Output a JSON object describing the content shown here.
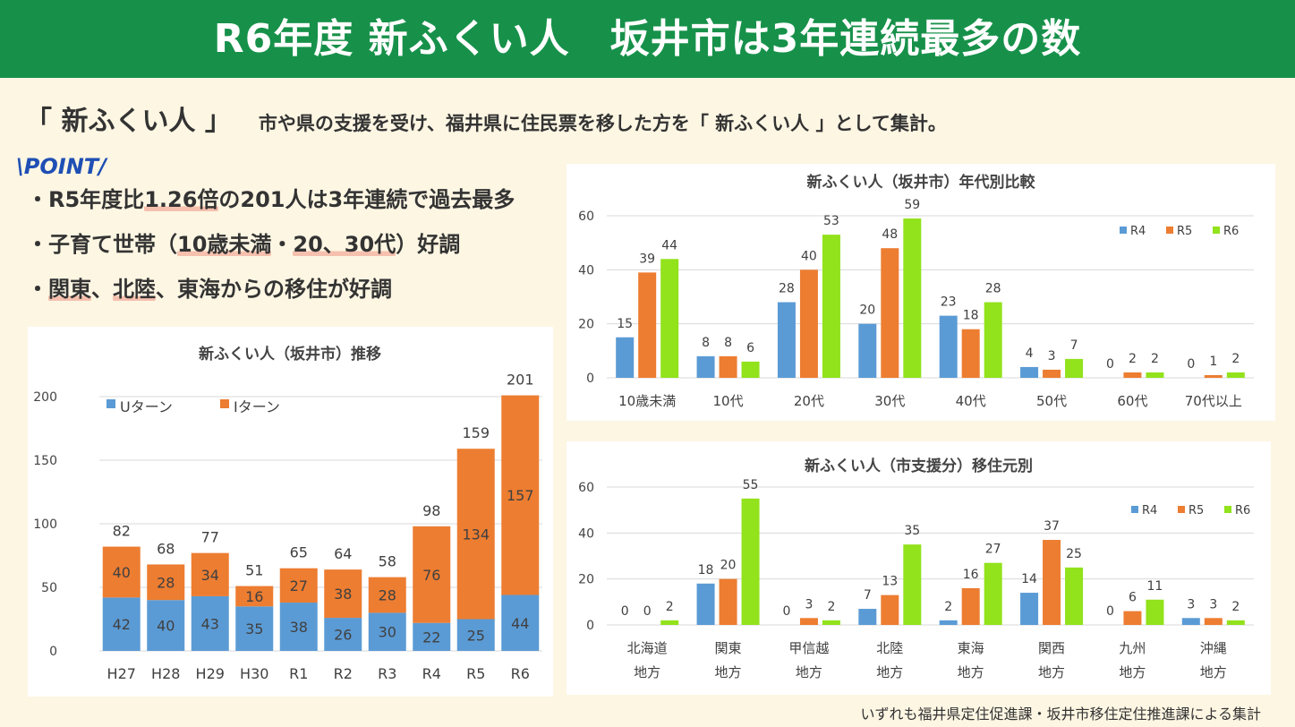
{
  "banner": {
    "title": "R6年度 新ふくい人　坂井市は3年連続最多の数"
  },
  "definition": {
    "term": "「 新ふくい人 」",
    "text": "市や県の支援を受け、福井県に住民票を移した方を「 新ふくい人 」として集計。"
  },
  "point": {
    "heading": "\\POINT/",
    "bullet": "・",
    "items": [
      {
        "a": "R5年度比",
        "b": "1.26倍",
        "c": "の201人は3年連続で過去最多",
        "d": "",
        "e": "",
        "f": ""
      },
      {
        "a": "子育て世帯（",
        "b": "10歳未満",
        "c": "・",
        "d": "20、30代",
        "e": "）好調",
        "f": ""
      },
      {
        "a": "",
        "b": "関東",
        "c": "、",
        "d": "北陸",
        "e": "、東海からの移住が好調",
        "f": ""
      }
    ]
  },
  "footnote": "いずれも福井県定住促進課・坂井市移住定住推進課による集計",
  "colors": {
    "banner": "#17914a",
    "blue": "#5b9bd5",
    "orange": "#ed7d31",
    "green": "#92e21c",
    "point": "#1f4fb5"
  },
  "chart_data": [
    {
      "id": "trend",
      "type": "bar",
      "stacked": true,
      "title": "新ふくい人（坂井市）推移",
      "categories": [
        "H27",
        "H28",
        "H29",
        "H30",
        "R1",
        "R2",
        "R3",
        "R4",
        "R5",
        "R6"
      ],
      "series": [
        {
          "name": "Uターン",
          "color": "#5b9bd5",
          "values": [
            42,
            40,
            43,
            35,
            38,
            26,
            30,
            22,
            25,
            44
          ]
        },
        {
          "name": "Iターン",
          "color": "#ed7d31",
          "values": [
            40,
            28,
            34,
            16,
            27,
            38,
            28,
            76,
            134,
            157
          ]
        }
      ],
      "totals": [
        82,
        68,
        77,
        51,
        65,
        64,
        58,
        98,
        159,
        201
      ],
      "ylim": [
        0,
        200
      ],
      "yticks": [
        0,
        50,
        100,
        150,
        200
      ],
      "legend": "top-left"
    },
    {
      "id": "age",
      "type": "bar",
      "title": "新ふくい人（坂井市）年代別比較",
      "categories": [
        "10歳未満",
        "10代",
        "20代",
        "30代",
        "40代",
        "50代",
        "60代",
        "70代以上"
      ],
      "series": [
        {
          "name": "R4",
          "color": "#5b9bd5",
          "values": [
            15,
            8,
            28,
            20,
            23,
            4,
            0,
            0
          ]
        },
        {
          "name": "R5",
          "color": "#ed7d31",
          "values": [
            39,
            8,
            40,
            48,
            18,
            3,
            2,
            1
          ]
        },
        {
          "name": "R6",
          "color": "#92e21c",
          "values": [
            44,
            6,
            53,
            59,
            28,
            7,
            2,
            2
          ]
        }
      ],
      "ylim": [
        0,
        60
      ],
      "yticks": [
        0,
        20,
        40,
        60
      ],
      "legend": "top-right"
    },
    {
      "id": "origin",
      "type": "bar",
      "title": "新ふくい人（市支援分）移住元別",
      "categories": [
        "北海道\n地方",
        "関東\n地方",
        "甲信越\n地方",
        "北陸\n地方",
        "東海\n地方",
        "関西\n地方",
        "九州\n地方",
        "沖縄\n地方"
      ],
      "series": [
        {
          "name": "R4",
          "color": "#5b9bd5",
          "values": [
            0,
            18,
            0,
            7,
            2,
            14,
            0,
            3
          ]
        },
        {
          "name": "R5",
          "color": "#ed7d31",
          "values": [
            0,
            20,
            3,
            13,
            16,
            37,
            6,
            3
          ]
        },
        {
          "name": "R6",
          "color": "#92e21c",
          "values": [
            2,
            55,
            2,
            35,
            27,
            25,
            11,
            2
          ]
        }
      ],
      "ylim": [
        0,
        60
      ],
      "yticks": [
        0,
        20,
        40,
        60
      ],
      "legend": "top-right"
    }
  ]
}
